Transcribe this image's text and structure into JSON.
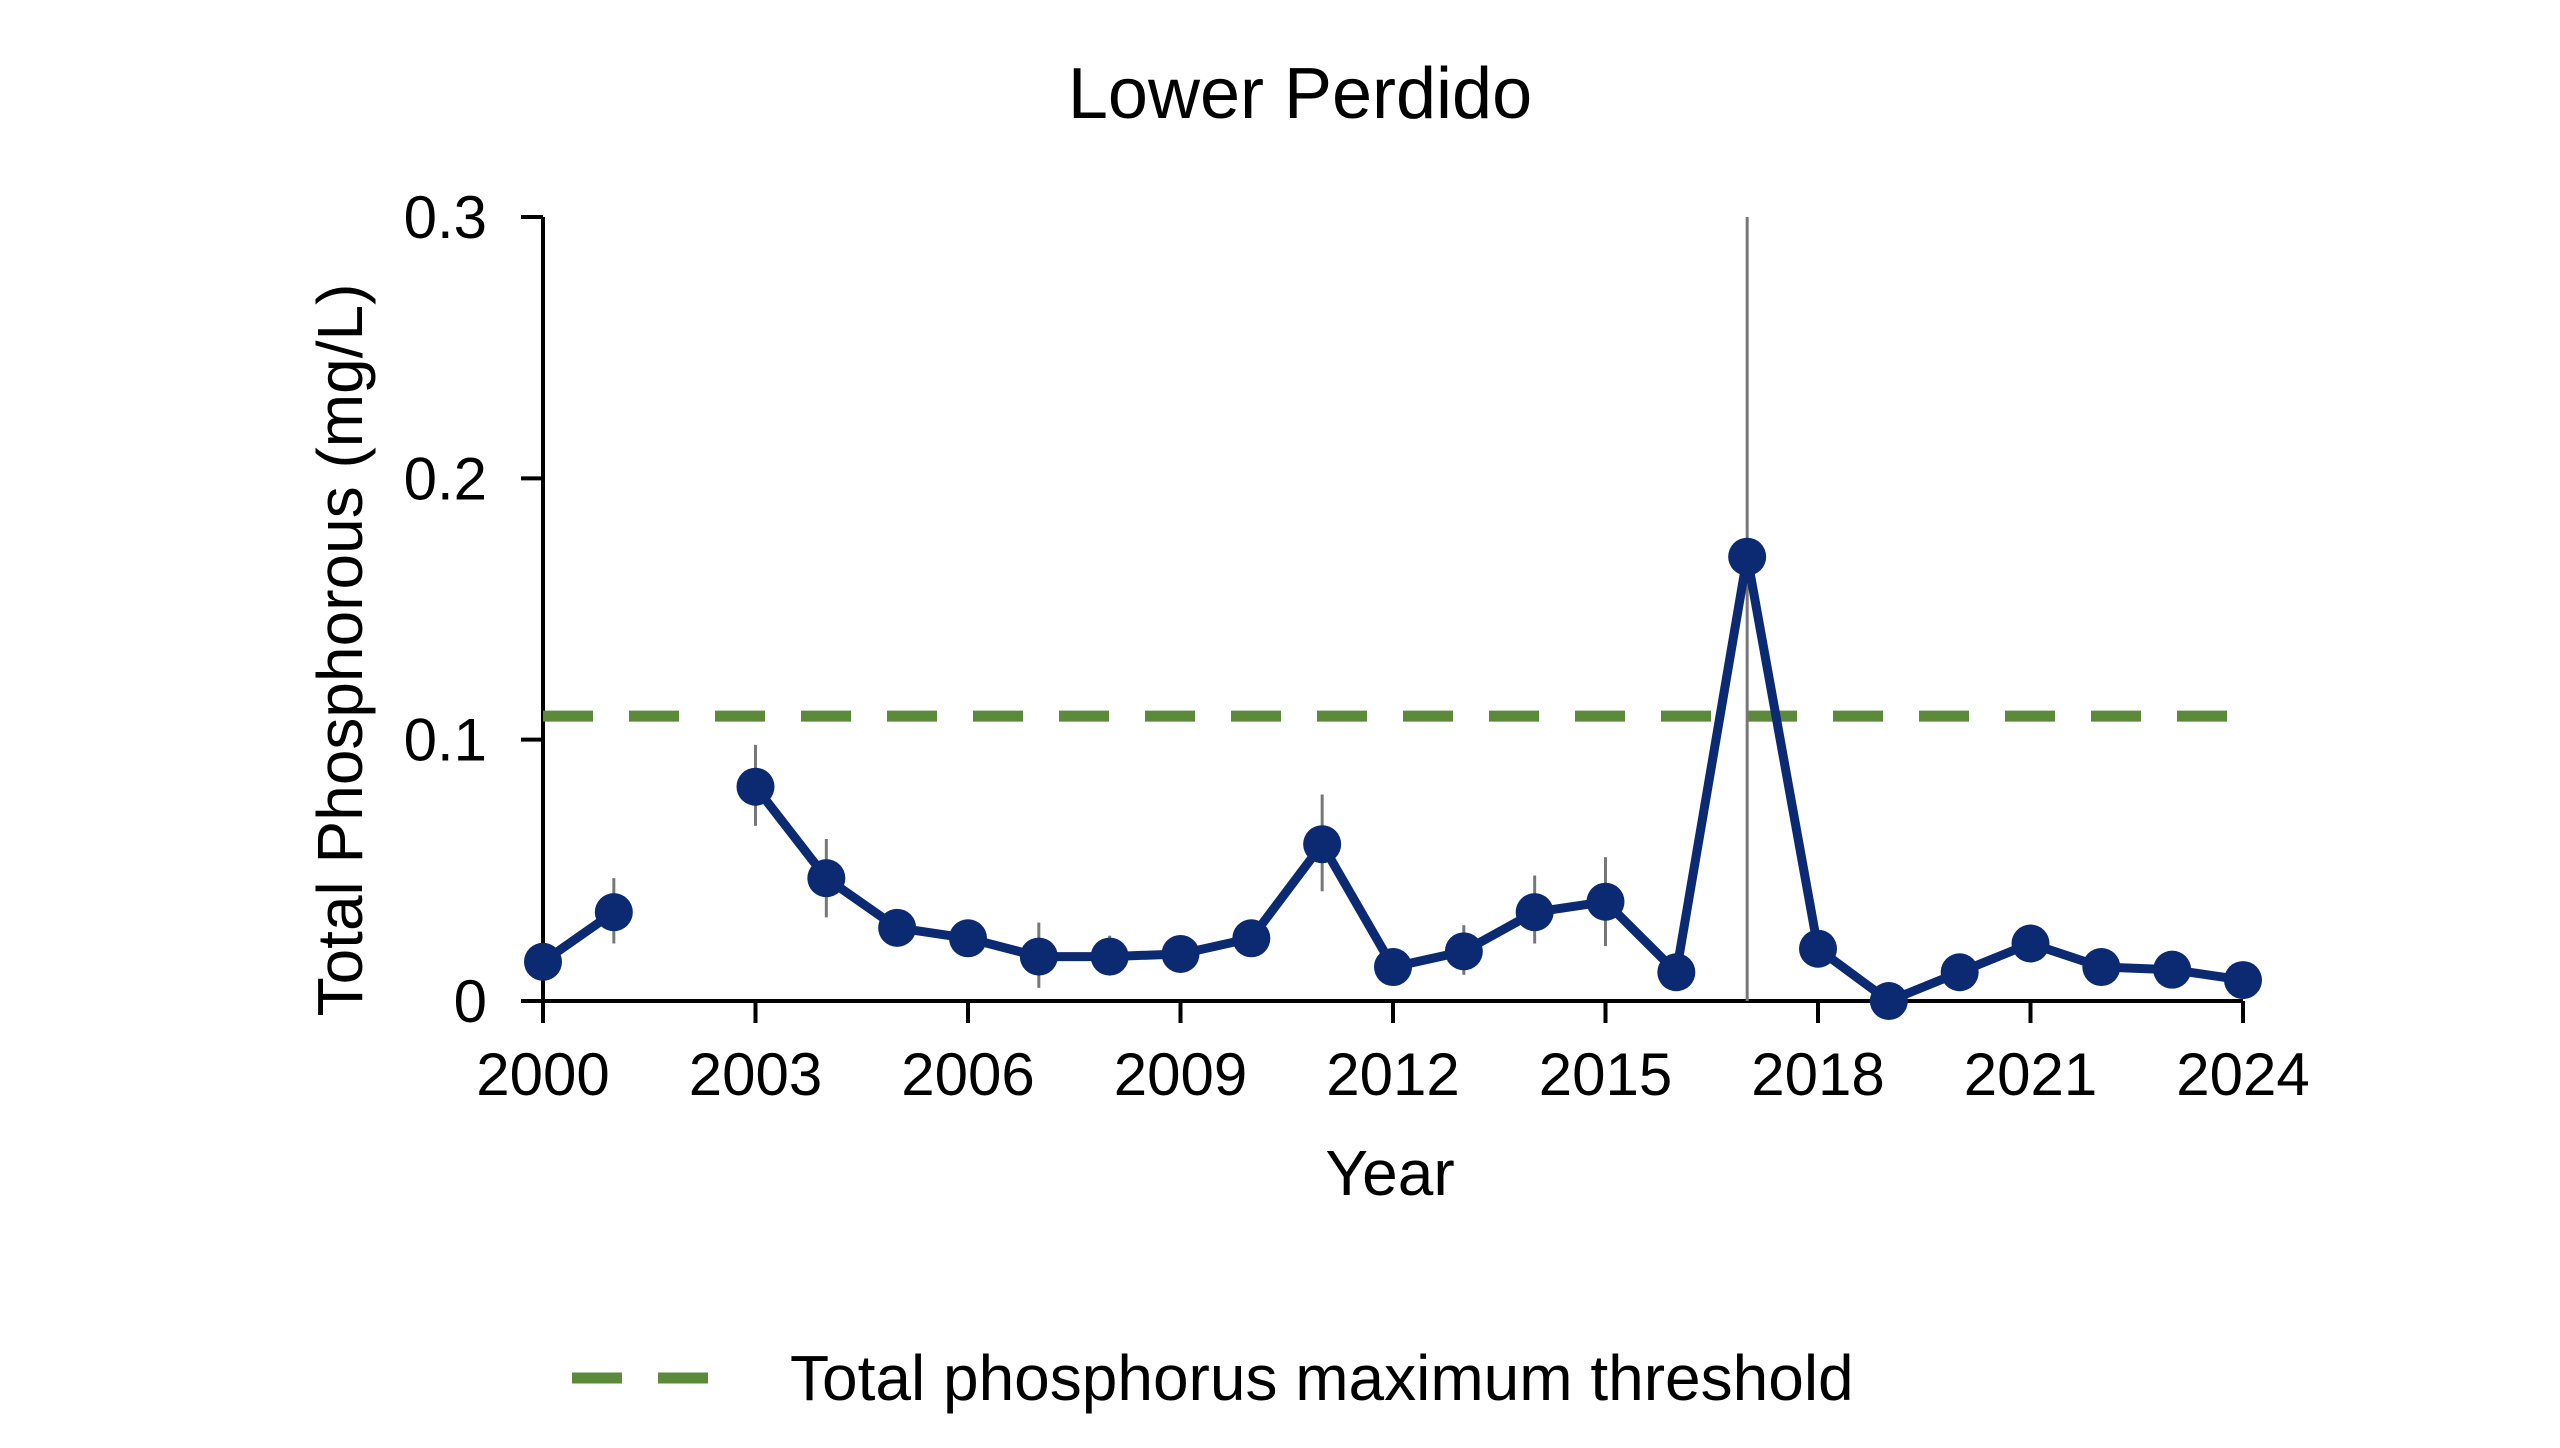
{
  "chart_data": {
    "type": "line",
    "title": "Lower Perdido",
    "xlabel": "Year",
    "ylabel": "Total Phosphorous (mg/L)",
    "xlim": [
      2000,
      2024
    ],
    "ylim": [
      0,
      0.3
    ],
    "x_ticks": [
      "2000",
      "2003",
      "2006",
      "2009",
      "2012",
      "2015",
      "2018",
      "2021",
      "2024"
    ],
    "y_ticks": [
      "0",
      "0.1",
      "0.2",
      "0.3"
    ],
    "grid": false,
    "legend_position": "bottom",
    "series": [
      {
        "color": "#0b2a72",
        "points": [
          {
            "x": 2000,
            "y": 0.015,
            "err_low": 0.008,
            "err_high": 0.022
          },
          {
            "x": 2001,
            "y": 0.034,
            "err_low": 0.022,
            "err_high": 0.047
          },
          {
            "x": 2002,
            "y": null
          },
          {
            "x": 2003,
            "y": 0.082,
            "err_low": 0.067,
            "err_high": 0.098
          },
          {
            "x": 2004,
            "y": 0.047,
            "err_low": 0.032,
            "err_high": 0.062
          },
          {
            "x": 2005,
            "y": 0.028,
            "err_low": 0.022,
            "err_high": 0.034
          },
          {
            "x": 2006,
            "y": 0.024,
            "err_low": 0.018,
            "err_high": 0.03
          },
          {
            "x": 2007,
            "y": 0.017,
            "err_low": 0.005,
            "err_high": 0.03
          },
          {
            "x": 2008,
            "y": 0.017,
            "err_low": 0.01,
            "err_high": 0.025
          },
          {
            "x": 2009,
            "y": 0.018,
            "err_low": 0.013,
            "err_high": 0.023
          },
          {
            "x": 2010,
            "y": 0.024,
            "err_low": 0.018,
            "err_high": 0.03
          },
          {
            "x": 2011,
            "y": 0.06,
            "err_low": 0.042,
            "err_high": 0.079
          },
          {
            "x": 2012,
            "y": 0.013,
            "err_low": 0.009,
            "err_high": 0.017
          },
          {
            "x": 2013,
            "y": 0.019,
            "err_low": 0.01,
            "err_high": 0.029
          },
          {
            "x": 2014,
            "y": 0.034,
            "err_low": 0.022,
            "err_high": 0.048
          },
          {
            "x": 2015,
            "y": 0.038,
            "err_low": 0.021,
            "err_high": 0.055
          },
          {
            "x": 2016,
            "y": 0.011,
            "err_low": 0.008,
            "err_high": 0.014
          },
          {
            "x": 2017,
            "y": 0.17,
            "err_low": 0.0,
            "err_high": 0.3
          },
          {
            "x": 2018,
            "y": 0.02,
            "err_low": 0.015,
            "err_high": 0.025
          },
          {
            "x": 2019,
            "y": 0.0,
            "err_low": 0.0,
            "err_high": 0.003
          },
          {
            "x": 2020,
            "y": 0.011,
            "err_low": 0.008,
            "err_high": 0.014
          },
          {
            "x": 2021,
            "y": 0.022,
            "err_low": 0.018,
            "err_high": 0.026
          },
          {
            "x": 2022,
            "y": 0.013,
            "err_low": 0.01,
            "err_high": 0.016
          },
          {
            "x": 2023,
            "y": 0.012,
            "err_low": 0.009,
            "err_high": 0.015
          },
          {
            "x": 2024,
            "y": 0.008,
            "err_low": 0.005,
            "err_high": 0.011
          }
        ]
      }
    ],
    "threshold": {
      "name": "Total phosphorus maximum threshold",
      "value": 0.109,
      "color": "#5b8a3a"
    }
  }
}
